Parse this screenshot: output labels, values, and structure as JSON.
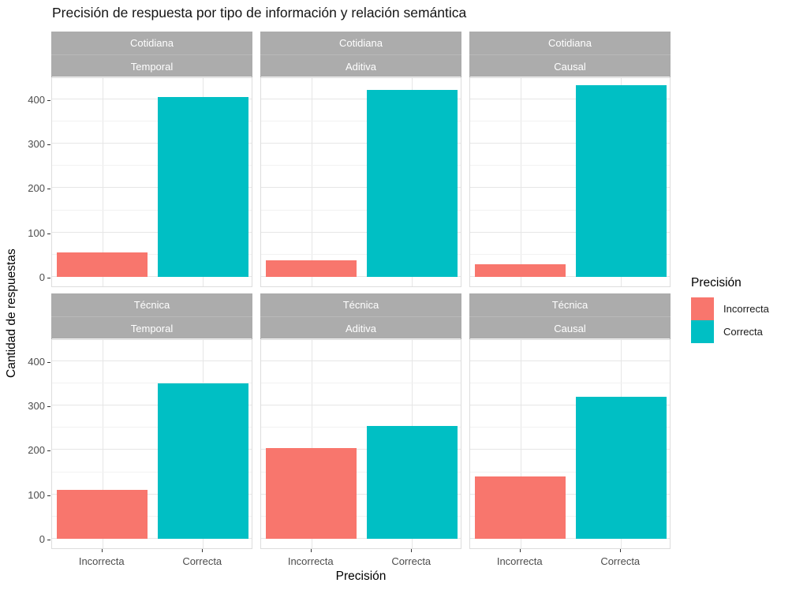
{
  "title": "Precisión de respuesta por tipo de información y relación semántica",
  "y_axis": {
    "label": "Cantidad de respuestas",
    "ticks": [
      0,
      100,
      200,
      300,
      400
    ]
  },
  "x_axis": {
    "label": "Precisión",
    "categories": [
      "Incorrecta",
      "Correcta"
    ]
  },
  "legend": {
    "title": "Precisión",
    "items": [
      {
        "label": "Incorrecta",
        "color": "#F8766D"
      },
      {
        "label": "Correcta",
        "color": "#00BFC4"
      }
    ]
  },
  "colors": {
    "bar_incorrecta": "#F8766D",
    "bar_correcta": "#00BFC4",
    "strip_background": "#ACACAC",
    "strip_text": "#FFFFFF",
    "grid_major": "#E6E6E6",
    "grid_minor": "#F2F2F2",
    "panel_border": "#DDDDDD",
    "axis_text": "#4D4D4D"
  },
  "chart_data": {
    "type": "bar",
    "title": "Precisión de respuesta por tipo de información y relación semántica",
    "xlabel": "Precisión",
    "ylabel": "Cantidad de respuestas",
    "facet_rows": [
      "Cotidiana",
      "Técnica"
    ],
    "facet_cols": [
      "Temporal",
      "Aditiva",
      "Causal"
    ],
    "categories": [
      "Incorrecta",
      "Correcta"
    ],
    "series_colors": [
      "#F8766D",
      "#00BFC4"
    ],
    "y_ticks": [
      0,
      100,
      200,
      300,
      400
    ],
    "y_minor_ticks": [
      50,
      150,
      250,
      350,
      450
    ],
    "ylim": [
      0,
      450
    ],
    "grid": true,
    "legend_position": "right",
    "panels": [
      {
        "row": "Cotidiana",
        "col": "Temporal",
        "values": [
          55,
          405
        ]
      },
      {
        "row": "Cotidiana",
        "col": "Aditiva",
        "values": [
          38,
          422
        ]
      },
      {
        "row": "Cotidiana",
        "col": "Causal",
        "values": [
          28,
          432
        ]
      },
      {
        "row": "Técnica",
        "col": "Temporal",
        "values": [
          110,
          350
        ]
      },
      {
        "row": "Técnica",
        "col": "Aditiva",
        "values": [
          205,
          255
        ]
      },
      {
        "row": "Técnica",
        "col": "Causal",
        "values": [
          140,
          320
        ]
      }
    ]
  }
}
